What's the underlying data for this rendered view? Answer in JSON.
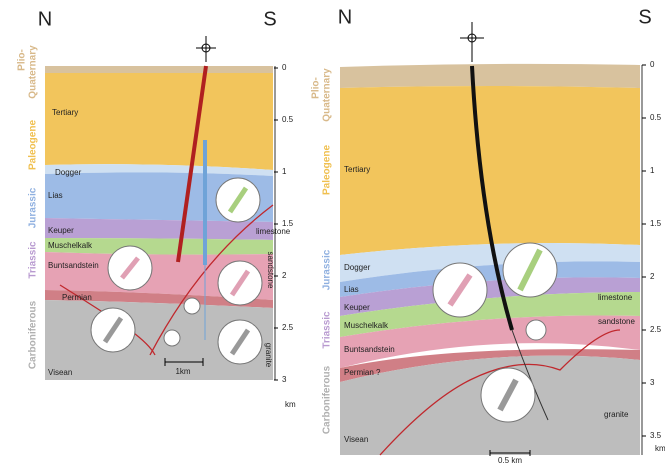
{
  "panels": [
    {
      "north": "N",
      "south": "S",
      "eras": [
        "Plio-",
        "Quaternary",
        "Paleogene",
        "Jurassic",
        "Triassic",
        "Carboniferous"
      ],
      "formations": [
        "Tertiary",
        "Dogger",
        "Lias",
        "Keuper",
        "Muschelkalk",
        "Buntsandstein",
        "Permian",
        "Visean"
      ],
      "annotations": [
        "limestone",
        "sandstone",
        "granite"
      ],
      "depth_ticks": [
        "0",
        "0.5",
        "1",
        "1.5",
        "2",
        "2.5",
        "3"
      ],
      "depth_unit": "km",
      "scale_bar": "1km"
    },
    {
      "north": "N",
      "south": "S",
      "eras": [
        "Plio-",
        "Quaternary",
        "Paleogene",
        "Jurassic",
        "Triassic",
        "Carboniferous"
      ],
      "formations": [
        "Tertiary",
        "Dogger",
        "Lias",
        "Keuper",
        "Muschelkalk",
        "Buntsandstein",
        "Permian ?",
        "Visean"
      ],
      "annotations": [
        "limestone",
        "sandstone",
        "granite"
      ],
      "depth_ticks": [
        "0",
        "0.5",
        "1",
        "1.5",
        "2",
        "2.5",
        "3",
        "3.5"
      ],
      "depth_unit": "km",
      "scale_bar": "0.5 km"
    }
  ]
}
